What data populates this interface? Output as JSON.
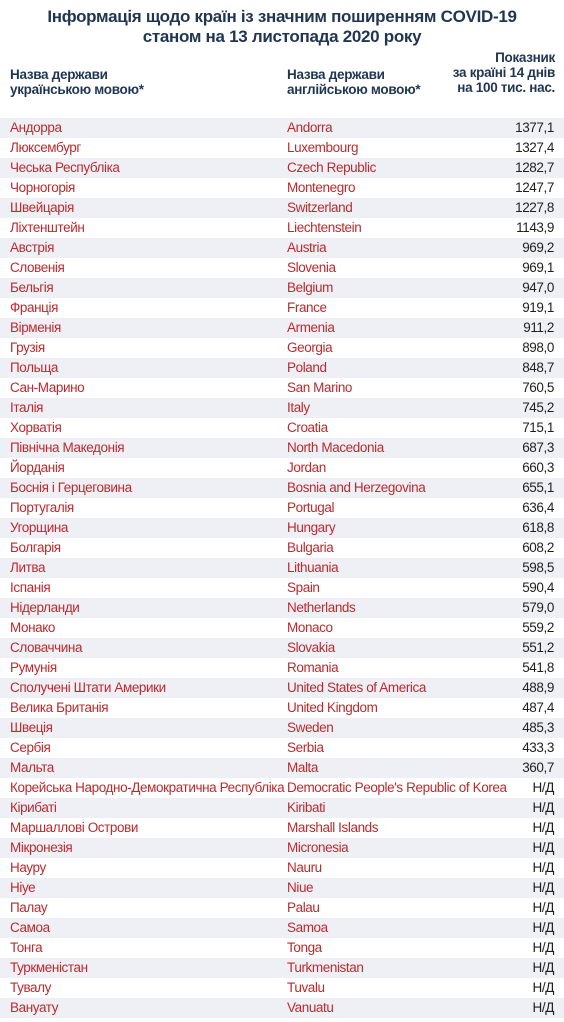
{
  "title_line1": "Інформація щодо країн із значним поширенням COVID-19",
  "title_line2": "станом на 13 листопада 2020 року",
  "header": {
    "col1_line1": "Назва держави",
    "col1_line2": "українською мовою*",
    "col2_line1": "Назва держави",
    "col2_line2": "англійською мовою*",
    "col3_line1": "Показник",
    "col3_line2": "за країні 14 днів",
    "col3_line3": "на 100 тис. нас."
  },
  "rows": [
    {
      "ua": "Андорра",
      "en": "Andorra",
      "value": "1377,1"
    },
    {
      "ua": "Люксембург",
      "en": "Luxembourg",
      "value": "1327,4"
    },
    {
      "ua": "Чеська Республіка",
      "en": "Czech Republic",
      "value": "1282,7"
    },
    {
      "ua": "Чорногорія",
      "en": "Montenegro",
      "value": "1247,7"
    },
    {
      "ua": "Швейцарія",
      "en": "Switzerland",
      "value": "1227,8"
    },
    {
      "ua": "Ліхтенштейн",
      "en": "Liechtenstein",
      "value": "1143,9"
    },
    {
      "ua": "Австрія",
      "en": "Austria",
      "value": "969,2"
    },
    {
      "ua": "Словенія",
      "en": "Slovenia",
      "value": "969,1"
    },
    {
      "ua": "Бельгія",
      "en": "Belgium",
      "value": "947,0"
    },
    {
      "ua": "Франція",
      "en": "France",
      "value": "919,1"
    },
    {
      "ua": "Вірменія",
      "en": "Armenia",
      "value": "911,2"
    },
    {
      "ua": "Грузія",
      "en": "Georgia",
      "value": "898,0"
    },
    {
      "ua": "Польща",
      "en": "Poland",
      "value": "848,7"
    },
    {
      "ua": "Сан-Марино",
      "en": "San Marino",
      "value": "760,5"
    },
    {
      "ua": "Італія",
      "en": "Italy",
      "value": "745,2"
    },
    {
      "ua": "Хорватія",
      "en": "Croatia",
      "value": "715,1"
    },
    {
      "ua": "Північна Македонія",
      "en": "North Macedonia",
      "value": "687,3"
    },
    {
      "ua": "Йорданія",
      "en": "Jordan",
      "value": "660,3"
    },
    {
      "ua": "Боснія і Герцеговина",
      "en": "Bosnia and Herzegovina",
      "value": "655,1"
    },
    {
      "ua": "Португалія",
      "en": "Portugal",
      "value": "636,4"
    },
    {
      "ua": "Угорщина",
      "en": "Hungary",
      "value": "618,8"
    },
    {
      "ua": "Болгарія",
      "en": "Bulgaria",
      "value": "608,2"
    },
    {
      "ua": "Литва",
      "en": "Lithuania",
      "value": "598,5"
    },
    {
      "ua": "Іспанія",
      "en": "Spain",
      "value": "590,4"
    },
    {
      "ua": "Нідерланди",
      "en": "Netherlands",
      "value": "579,0"
    },
    {
      "ua": "Монако",
      "en": "Monaco",
      "value": "559,2"
    },
    {
      "ua": "Словаччина",
      "en": "Slovakia",
      "value": "551,2"
    },
    {
      "ua": "Румунія",
      "en": "Romania",
      "value": "541,8"
    },
    {
      "ua": "Сполучені Штати Америки",
      "en": "United States of America",
      "value": "488,9"
    },
    {
      "ua": "Велика Британія",
      "en": "United Kingdom",
      "value": "487,4"
    },
    {
      "ua": "Швеція",
      "en": "Sweden",
      "value": "485,3"
    },
    {
      "ua": "Сербія",
      "en": "Serbia",
      "value": "433,3"
    },
    {
      "ua": "Мальта",
      "en": "Malta",
      "value": "360,7"
    },
    {
      "ua": "Корейська Народно-Демократична Республіка",
      "en": "Democratic People's Republic of Korea",
      "value": "Н/Д"
    },
    {
      "ua": "Кірибаті",
      "en": "Kiribati",
      "value": "Н/Д"
    },
    {
      "ua": "Маршаллові Острови",
      "en": "Marshall Islands",
      "value": "Н/Д"
    },
    {
      "ua": "Мікронезія",
      "en": "Micronesia",
      "value": "Н/Д"
    },
    {
      "ua": "Науру",
      "en": "Nauru",
      "value": "Н/Д"
    },
    {
      "ua": "Ніуе",
      "en": "Niue",
      "value": "Н/Д"
    },
    {
      "ua": "Палау",
      "en": "Palau",
      "value": "Н/Д"
    },
    {
      "ua": "Самоа",
      "en": "Samoa",
      "value": "Н/Д"
    },
    {
      "ua": "Тонга",
      "en": "Tonga",
      "value": "Н/Д"
    },
    {
      "ua": "Туркменістан",
      "en": "Turkmenistan",
      "value": "Н/Д"
    },
    {
      "ua": "Тувалу",
      "en": "Tuvalu",
      "value": "Н/Д"
    },
    {
      "ua": "Вануату",
      "en": "Vanuatu",
      "value": "Н/Д"
    }
  ],
  "colors": {
    "title": "#1f3552",
    "country_name": "#c0282d",
    "value": "#1f1f1f",
    "stripe": "#eef0f6"
  }
}
